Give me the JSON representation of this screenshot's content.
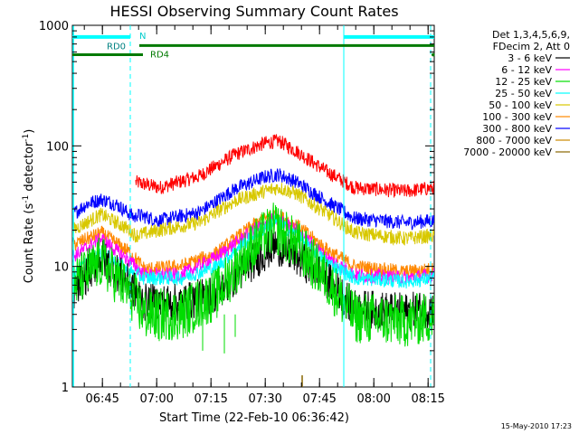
{
  "chart_data": {
    "type": "line",
    "title": "HESSI Observing Summary Count Rates",
    "xlabel": "Start Time (22-Feb-10 06:36:42)",
    "ylabel": "Count Rate (s",
    "ylabel_sup": "-1",
    "ylabel_mid": " detector",
    "ylabel_end": ")",
    "y_scale": "log",
    "ylim": [
      1,
      1000
    ],
    "y_ticks": [
      {
        "value": 1,
        "label": "1"
      },
      {
        "value": 10,
        "label": "10"
      },
      {
        "value": 100,
        "label": "100"
      },
      {
        "value": 1000,
        "label": "1000"
      }
    ],
    "xlim_minutes": [
      0,
      100
    ],
    "x_ticks": [
      {
        "minutes": 8.3,
        "label": "06:45"
      },
      {
        "minutes": 23.3,
        "label": "07:00"
      },
      {
        "minutes": 38.3,
        "label": "07:15"
      },
      {
        "minutes": 53.3,
        "label": "07:30"
      },
      {
        "minutes": 68.3,
        "label": "07:45"
      },
      {
        "minutes": 83.3,
        "label": "08:00"
      },
      {
        "minutes": 98.3,
        "label": "08:15"
      }
    ],
    "legend_header": [
      "Det 1,3,4,5,6,9,",
      "FDecim 2, Att 0"
    ],
    "legend_position": "right",
    "series": [
      {
        "name": "3 - 6 keV",
        "color": "#000000"
      },
      {
        "name": "6 - 12 keV",
        "color": "#ff00ff"
      },
      {
        "name": "12 - 25 keV",
        "color": "#00dd00"
      },
      {
        "name": "25 - 50 keV",
        "color": "#00ffff"
      },
      {
        "name": "50 - 100 keV",
        "color": "#d8c800"
      },
      {
        "name": "100 - 300 keV",
        "color": "#ff8800"
      },
      {
        "name": "300 - 800 keV",
        "color": "#0000ff"
      },
      {
        "name": "800 - 7000 keV",
        "color": "#cc8800"
      },
      {
        "name": "7000 - 20000 keV",
        "color": "#886600"
      }
    ],
    "plotted_curves": [
      {
        "color": "#ff0000",
        "points": [
          [
            17.5,
            50
          ],
          [
            24,
            45
          ],
          [
            35,
            56
          ],
          [
            45,
            85
          ],
          [
            53,
            105
          ],
          [
            57,
            110
          ],
          [
            62,
            90
          ],
          [
            70,
            62
          ],
          [
            78,
            45
          ],
          [
            92,
            42
          ],
          [
            100,
            45
          ]
        ]
      },
      {
        "color": "#0000ff",
        "points": [
          [
            0,
            27
          ],
          [
            4,
            33
          ],
          [
            8,
            36
          ],
          [
            12,
            33
          ],
          [
            16,
            27
          ],
          [
            17.5,
            25
          ],
          [
            17.6,
            27
          ],
          [
            24,
            24
          ],
          [
            35,
            28
          ],
          [
            45,
            44
          ],
          [
            53,
            55
          ],
          [
            57,
            58
          ],
          [
            62,
            50
          ],
          [
            70,
            35
          ],
          [
            78,
            25
          ],
          [
            92,
            23
          ],
          [
            100,
            24
          ]
        ]
      },
      {
        "color": "#d8c800",
        "points": [
          [
            0,
            20
          ],
          [
            8,
            27
          ],
          [
            16,
            20
          ],
          [
            17.5,
            18
          ],
          [
            24,
            20
          ],
          [
            35,
            23
          ],
          [
            45,
            35
          ],
          [
            53,
            42
          ],
          [
            57,
            45
          ],
          [
            62,
            40
          ],
          [
            70,
            28
          ],
          [
            78,
            19
          ],
          [
            92,
            17
          ],
          [
            100,
            18
          ]
        ]
      },
      {
        "color": "#ff8800",
        "points": [
          [
            0,
            15
          ],
          [
            8,
            19
          ],
          [
            16,
            13
          ],
          [
            20,
            9.5
          ],
          [
            30,
            10
          ],
          [
            40,
            13
          ],
          [
            50,
            22
          ],
          [
            56,
            27
          ],
          [
            62,
            22
          ],
          [
            70,
            14
          ],
          [
            78,
            10
          ],
          [
            92,
            9
          ],
          [
            100,
            9.5
          ]
        ]
      },
      {
        "color": "#ff00ff",
        "points": [
          [
            0,
            12
          ],
          [
            8,
            17
          ],
          [
            16,
            11
          ],
          [
            20,
            8.5
          ],
          [
            30,
            8.5
          ],
          [
            40,
            12
          ],
          [
            50,
            20
          ],
          [
            56,
            25
          ],
          [
            62,
            20
          ],
          [
            70,
            12
          ],
          [
            78,
            8.5
          ],
          [
            92,
            8
          ],
          [
            100,
            8.5
          ]
        ]
      },
      {
        "color": "#00ffff",
        "points": [
          [
            0,
            8
          ],
          [
            4,
            11
          ],
          [
            8,
            13
          ],
          [
            12,
            11
          ],
          [
            16,
            9
          ],
          [
            20,
            8
          ],
          [
            30,
            8
          ],
          [
            40,
            10
          ],
          [
            50,
            18
          ],
          [
            56,
            24
          ],
          [
            62,
            18
          ],
          [
            70,
            11
          ],
          [
            78,
            8
          ],
          [
            92,
            7.5
          ],
          [
            100,
            8
          ]
        ]
      },
      {
        "color": "#000000",
        "points": [
          [
            0,
            6
          ],
          [
            8,
            12
          ],
          [
            16,
            7
          ],
          [
            20,
            5
          ],
          [
            30,
            5
          ],
          [
            40,
            6
          ],
          [
            50,
            11
          ],
          [
            56,
            15
          ],
          [
            62,
            12
          ],
          [
            70,
            8
          ],
          [
            78,
            4.5
          ],
          [
            92,
            4.2
          ],
          [
            100,
            4.5
          ]
        ]
      },
      {
        "color": "#00dd00",
        "points": [
          [
            0,
            7
          ],
          [
            8,
            11
          ],
          [
            16,
            6
          ],
          [
            20,
            4
          ],
          [
            30,
            4
          ],
          [
            40,
            6
          ],
          [
            50,
            15
          ],
          [
            56,
            21
          ],
          [
            62,
            15
          ],
          [
            70,
            8
          ],
          [
            78,
            3.8
          ],
          [
            92,
            3.5
          ],
          [
            100,
            3.8
          ]
        ]
      }
    ],
    "annotations": [
      {
        "label": "N",
        "color": "#00ffff",
        "y": 800,
        "x": [
          0,
          16
        ],
        "x2": [
          75,
          100
        ]
      },
      {
        "label": "RD0",
        "color": "#00cccc",
        "y": 680
      },
      {
        "label": "RD4",
        "color": "#007a00",
        "y": 570
      }
    ],
    "vertical_markers_minutes": [
      16,
      75,
      99
    ]
  },
  "footer_date": "15-May-2010 17:23"
}
